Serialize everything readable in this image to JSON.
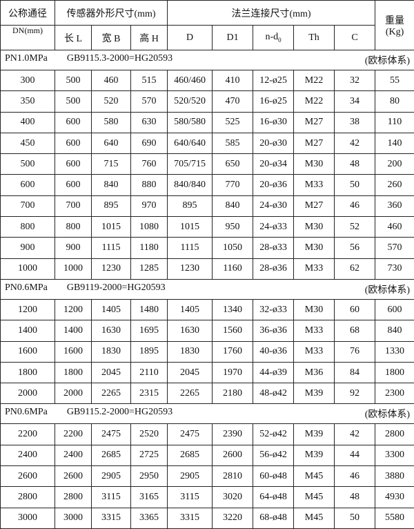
{
  "header": {
    "dn": "公称通径",
    "dn_unit": "DN(mm)",
    "sensor": "传感器外形尺寸(mm)",
    "flange": "法兰连接尺寸(mm)",
    "weight": "重量",
    "weight_unit": "(Kg)",
    "cols": [
      "长 L",
      "宽 B",
      "高 H",
      "D",
      "D1",
      "n-d",
      "Th",
      "C"
    ],
    "nd_sub": "0"
  },
  "sections": [
    {
      "pressure": "PN1.0MPa",
      "standard": "GB9115.3-2000=HG20593",
      "system": "(欧标体系)",
      "rows": [
        [
          "300",
          "500",
          "460",
          "515",
          "460/460",
          "410",
          "12-ø25",
          "M22",
          "32",
          "55"
        ],
        [
          "350",
          "500",
          "520",
          "570",
          "520/520",
          "470",
          "16-ø25",
          "M22",
          "34",
          "80"
        ],
        [
          "400",
          "600",
          "580",
          "630",
          "580/580",
          "525",
          "16-ø30",
          "M27",
          "38",
          "110"
        ],
        [
          "450",
          "600",
          "640",
          "690",
          "640/640",
          "585",
          "20-ø30",
          "M27",
          "42",
          "140"
        ],
        [
          "500",
          "600",
          "715",
          "760",
          "705/715",
          "650",
          "20-ø34",
          "M30",
          "48",
          "200"
        ],
        [
          "600",
          "600",
          "840",
          "880",
          "840/840",
          "770",
          "20-ø36",
          "M33",
          "50",
          "260"
        ],
        [
          "700",
          "700",
          "895",
          "970",
          "895",
          "840",
          "24-ø30",
          "M27",
          "46",
          "360"
        ],
        [
          "800",
          "800",
          "1015",
          "1080",
          "1015",
          "950",
          "24-ø33",
          "M30",
          "52",
          "460"
        ],
        [
          "900",
          "900",
          "1115",
          "1180",
          "1115",
          "1050",
          "28-ø33",
          "M30",
          "56",
          "570"
        ],
        [
          "1000",
          "1000",
          "1230",
          "1285",
          "1230",
          "1160",
          "28-ø36",
          "M33",
          "62",
          "730"
        ]
      ]
    },
    {
      "pressure": "PN0.6MPa",
      "standard": "GB9119-2000=HG20593",
      "system": "(欧标体系)",
      "rows": [
        [
          "1200",
          "1200",
          "1405",
          "1480",
          "1405",
          "1340",
          "32-ø33",
          "M30",
          "60",
          "600"
        ],
        [
          "1400",
          "1400",
          "1630",
          "1695",
          "1630",
          "1560",
          "36-ø36",
          "M33",
          "68",
          "840"
        ],
        [
          "1600",
          "1600",
          "1830",
          "1895",
          "1830",
          "1760",
          "40-ø36",
          "M33",
          "76",
          "1330"
        ],
        [
          "1800",
          "1800",
          "2045",
          "2110",
          "2045",
          "1970",
          "44-ø39",
          "M36",
          "84",
          "1800"
        ],
        [
          "2000",
          "2000",
          "2265",
          "2315",
          "2265",
          "2180",
          "48-ø42",
          "M39",
          "92",
          "2300"
        ]
      ]
    },
    {
      "pressure": "PN0.6MPa",
      "standard": "GB9115.2-2000=HG20593",
      "system": "(欧标体系)",
      "rows": [
        [
          "2200",
          "2200",
          "2475",
          "2520",
          "2475",
          "2390",
          "52-ø42",
          "M39",
          "42",
          "2800"
        ],
        [
          "2400",
          "2400",
          "2685",
          "2725",
          "2685",
          "2600",
          "56-ø42",
          "M39",
          "44",
          "3300"
        ],
        [
          "2600",
          "2600",
          "2905",
          "2950",
          "2905",
          "2810",
          "60-ø48",
          "M45",
          "46",
          "3880"
        ],
        [
          "2800",
          "2800",
          "3115",
          "3165",
          "3115",
          "3020",
          "64-ø48",
          "M45",
          "48",
          "4930"
        ],
        [
          "3000",
          "3000",
          "3315",
          "3365",
          "3315",
          "3220",
          "68-ø48",
          "M45",
          "50",
          "5580"
        ]
      ]
    }
  ]
}
